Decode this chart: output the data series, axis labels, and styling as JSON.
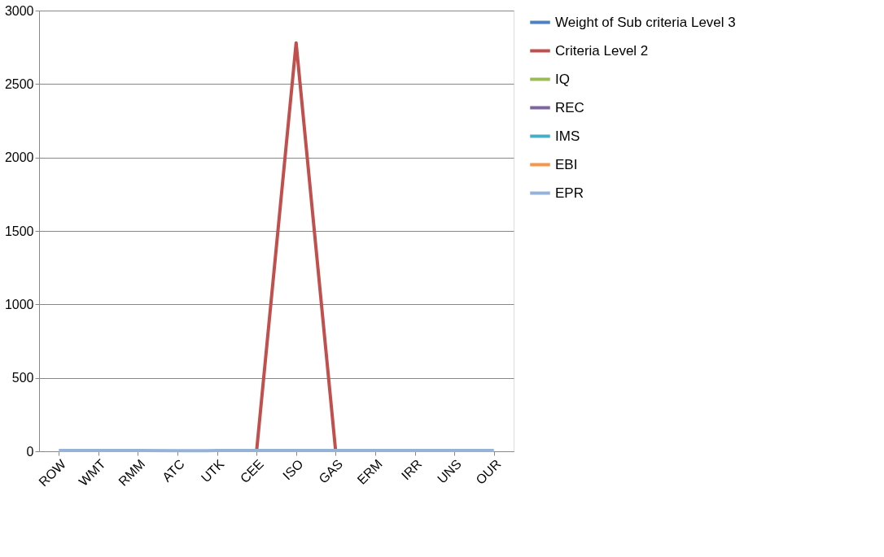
{
  "chart_data": {
    "type": "line",
    "categories": [
      "ROW",
      "WMT",
      "RMM",
      "ATC",
      "UTK",
      "CEE",
      "ISO",
      "GAS",
      "ERM",
      "IRR",
      "UNS",
      "OUR"
    ],
    "series": [
      {
        "name": "Weight of Sub criteria Level 3",
        "color": "#4f81bd",
        "values": [
          null,
          null,
          null,
          null,
          null,
          null,
          null,
          null,
          null,
          null,
          null,
          null
        ]
      },
      {
        "name": "Criteria Level 2",
        "color": "#c0504d",
        "values": [
          null,
          null,
          null,
          null,
          null,
          0,
          2780,
          0,
          null,
          null,
          null,
          null
        ]
      },
      {
        "name": "IQ",
        "color": "#9bbb59",
        "values": [
          null,
          null,
          null,
          null,
          null,
          null,
          null,
          null,
          null,
          null,
          null,
          null
        ]
      },
      {
        "name": "REC",
        "color": "#8064a2",
        "values": [
          null,
          null,
          null,
          null,
          null,
          null,
          null,
          null,
          null,
          null,
          null,
          null
        ]
      },
      {
        "name": "IMS",
        "color": "#4bacc6",
        "values": [
          null,
          null,
          null,
          null,
          null,
          null,
          null,
          null,
          null,
          null,
          null,
          null
        ]
      },
      {
        "name": "EBI",
        "color": "#f79646",
        "values": [
          null,
          null,
          null,
          null,
          null,
          null,
          null,
          null,
          null,
          null,
          null,
          null
        ]
      },
      {
        "name": "EPR",
        "color": "#95b3d7",
        "values": [
          5,
          5,
          5,
          4,
          5,
          5,
          5,
          5,
          5,
          5,
          5,
          5
        ]
      }
    ],
    "ylim": [
      0,
      3000
    ],
    "yticks": [
      0,
      500,
      1000,
      1500,
      2000,
      2500,
      3000
    ],
    "grid": "y",
    "legend": "right",
    "marker": "none",
    "line_style": "solid"
  }
}
